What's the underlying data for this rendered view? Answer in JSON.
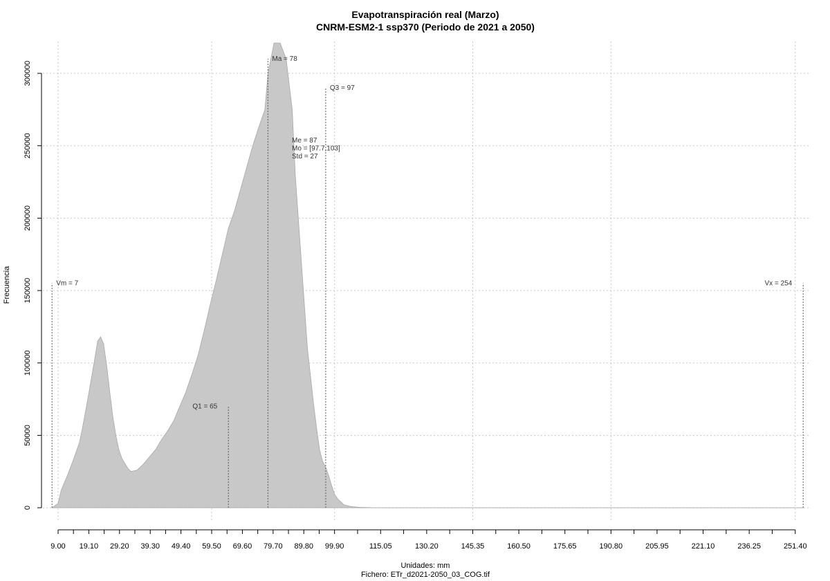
{
  "chart_data": {
    "type": "area",
    "title": "Evapotranspiración real (Marzo)",
    "subtitle": "CNRM-ESM2-1 ssp370 (Periodo de 2021 a 2050)",
    "xlabel": "Unidades: mm",
    "ylabel": "Frecuencia",
    "footer": "Fichero: ETr_d2021-2050_03_COG.tif",
    "xlim": [
      4,
      256
    ],
    "ylim": [
      -10000,
      322000
    ],
    "grid": true,
    "fill_color": "#c8c8c8",
    "x_tick_labels": [
      "9.00",
      "19.10",
      "29.20",
      "39.30",
      "49.40",
      "59.50",
      "69.60",
      "79.70",
      "89.80",
      "99.90",
      "115.05",
      "130.20",
      "145.35",
      "160.50",
      "175.65",
      "190.80",
      "205.95",
      "221.10",
      "236.25",
      "251.40"
    ],
    "x_ticks_minor": [
      9.0,
      14.05,
      19.1,
      24.15,
      29.2,
      34.25,
      39.3,
      44.35,
      49.4,
      54.45,
      59.5,
      64.55,
      69.6,
      74.65,
      79.7,
      84.75,
      89.8,
      94.85,
      99.9,
      107.475,
      115.05,
      122.625,
      130.2,
      137.775,
      145.35,
      152.925,
      160.5,
      168.075,
      175.65,
      183.225,
      190.8,
      198.375,
      205.95,
      213.525,
      221.1,
      228.675,
      236.25,
      243.825,
      251.4
    ],
    "y_ticks": [
      0,
      50000,
      100000,
      150000,
      200000,
      250000,
      300000
    ],
    "y_tick_labels": [
      "0",
      "50000",
      "100000",
      "150000",
      "200000",
      "250000",
      "300000"
    ],
    "x": [
      7,
      9,
      10,
      12,
      14,
      16,
      17,
      19,
      21,
      22,
      23,
      24,
      25,
      26,
      27,
      28,
      29,
      30,
      32,
      33,
      35,
      37,
      39,
      41,
      43,
      45,
      47,
      49,
      51,
      53,
      55,
      57,
      59,
      61,
      63,
      65,
      67,
      69,
      71,
      73,
      75,
      77,
      78,
      80,
      82,
      84,
      86,
      87,
      89,
      91,
      93,
      94,
      95,
      96,
      97,
      98,
      99,
      100,
      101,
      102,
      103,
      104,
      105,
      106,
      107,
      108,
      110,
      112,
      115,
      118,
      121,
      125,
      130,
      135,
      140,
      145,
      150,
      160,
      180,
      200,
      220,
      240,
      254
    ],
    "y": [
      0,
      3000,
      12000,
      22000,
      33000,
      45000,
      55000,
      78000,
      102000,
      115000,
      118000,
      113000,
      98000,
      80000,
      63000,
      50000,
      40000,
      34000,
      27000,
      25000,
      26000,
      30000,
      35000,
      40000,
      47000,
      53000,
      60000,
      70000,
      80000,
      92000,
      105000,
      122000,
      140000,
      157000,
      175000,
      193000,
      205000,
      220000,
      235000,
      250000,
      263000,
      275000,
      300000,
      321000,
      321000,
      310000,
      275000,
      230000,
      170000,
      110000,
      72000,
      55000,
      40000,
      32000,
      28000,
      22000,
      15000,
      9000,
      6000,
      4000,
      2000,
      1500,
      1000,
      700,
      500,
      300,
      200,
      100,
      50,
      0,
      0,
      0,
      0,
      0,
      0,
      0,
      0,
      0,
      0,
      0,
      0,
      0,
      0
    ],
    "markers": [
      {
        "label": "Vm = 7",
        "x": 7,
        "top": 155000,
        "label_side": "right"
      },
      {
        "label": "Q1 = 65",
        "x": 65,
        "top": 70000,
        "label_side": "left"
      },
      {
        "label": "Ma = 78",
        "x": 78,
        "top": 310000,
        "label_side": "right"
      },
      {
        "label": "Q3 = 97",
        "x": 97,
        "top": 290000,
        "label_side": "right"
      },
      {
        "label": "Vx = 254",
        "x": 254,
        "top": 155000,
        "label_side": "left"
      }
    ],
    "stats_text": [
      "Me = 87",
      "Mo = [97.7,103]",
      "Std = 27"
    ]
  }
}
